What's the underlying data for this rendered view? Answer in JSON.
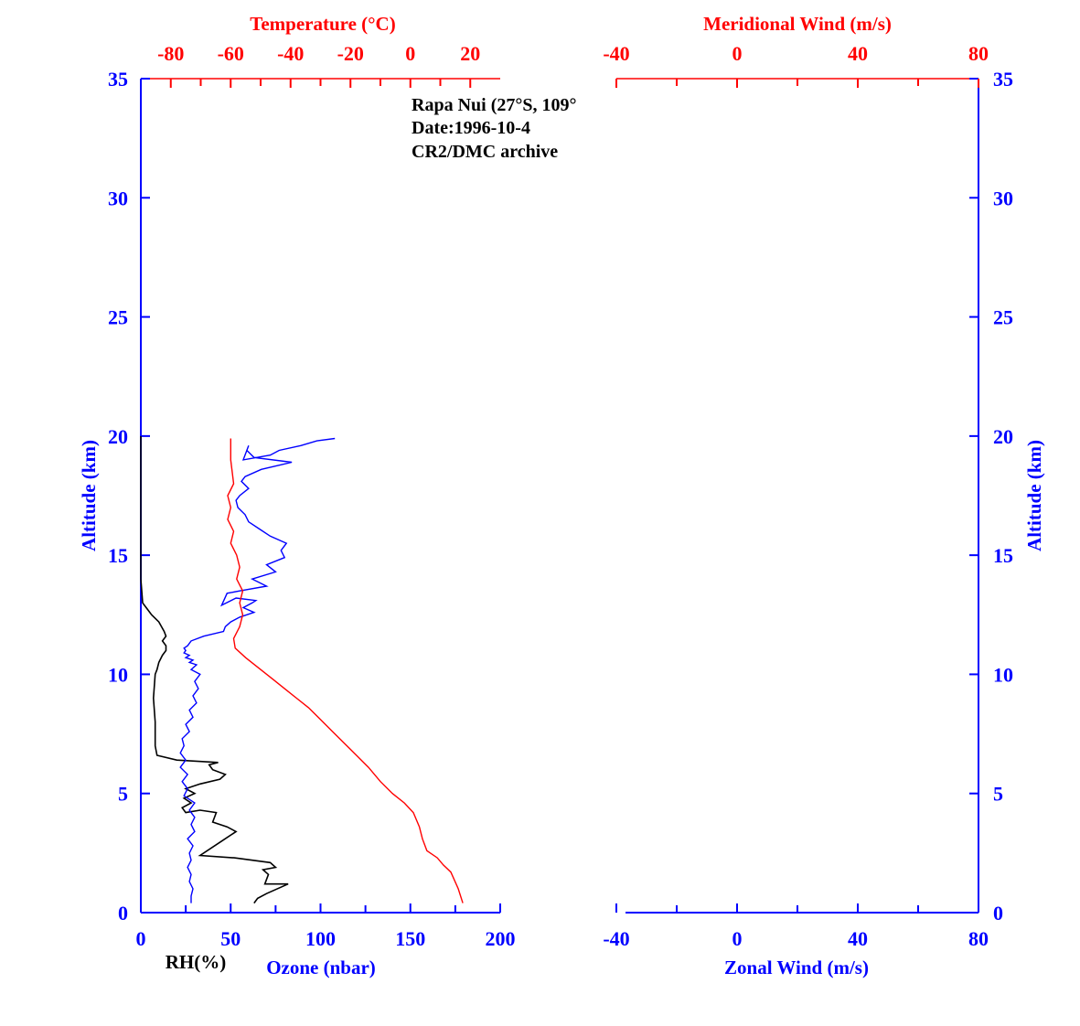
{
  "colors": {
    "blue": "#0000ff",
    "red": "#ff0000",
    "black": "#000000"
  },
  "chart_data": [
    {
      "type": "line",
      "panel": "left",
      "annotation": [
        "Rapa Nui (27°S, 109°",
        "Date:1996-10-4",
        "CR2/DMC archive"
      ],
      "y_axis": {
        "label": "Altitude (km)",
        "range": [
          0,
          35
        ],
        "ticks": [
          0,
          5,
          10,
          15,
          20,
          25,
          30,
          35
        ]
      },
      "x_axis_bottom": {
        "label": "Ozone (nbar)",
        "secondary_label": "RH(%)",
        "range": [
          0,
          200
        ],
        "ticks": [
          0,
          50,
          100,
          150,
          200
        ]
      },
      "x_axis_top": {
        "label": "Temperature (°C)",
        "range": [
          -90,
          30
        ],
        "ticks": [
          -80,
          -60,
          -40,
          -20,
          0,
          20
        ]
      },
      "series": [
        {
          "key": "ozone",
          "color": "#0000ff",
          "axis": "bottom",
          "x": [
            28,
            28,
            29,
            27,
            28,
            26,
            28,
            27,
            29,
            26,
            30,
            28,
            30,
            27,
            30,
            24,
            26,
            23,
            26,
            22,
            25,
            22,
            24,
            23,
            27,
            25,
            29,
            27,
            31,
            29,
            32,
            30,
            33,
            28,
            31,
            27,
            29,
            25,
            27,
            24,
            25,
            24,
            26,
            28,
            35,
            46,
            47,
            50,
            55,
            63,
            57,
            62,
            64,
            53,
            45,
            48,
            55,
            70,
            62,
            75,
            70,
            80,
            78,
            81,
            72,
            66,
            60,
            58,
            54,
            53,
            55,
            60,
            56,
            58,
            67,
            84,
            63,
            59,
            60,
            57,
            72,
            77,
            89,
            98,
            108
          ],
          "y": [
            0.4,
            0.7,
            1.0,
            1.3,
            1.6,
            1.9,
            2.2,
            2.5,
            2.8,
            3.1,
            3.4,
            3.7,
            4.0,
            4.3,
            4.6,
            4.9,
            5.2,
            5.5,
            5.8,
            6.1,
            6.4,
            6.7,
            7.0,
            7.3,
            7.6,
            7.9,
            8.2,
            8.5,
            8.8,
            9.1,
            9.4,
            9.7,
            10.0,
            10.2,
            10.4,
            10.5,
            10.6,
            10.7,
            10.8,
            10.9,
            11.0,
            11.1,
            11.2,
            11.4,
            11.6,
            11.8,
            12.0,
            12.2,
            12.4,
            12.6,
            12.8,
            13.0,
            13.1,
            13.2,
            12.9,
            13.4,
            13.5,
            13.7,
            14.0,
            14.3,
            14.6,
            14.9,
            15.2,
            15.5,
            15.8,
            16.1,
            16.4,
            16.7,
            17.0,
            17.3,
            17.5,
            17.8,
            18.1,
            18.3,
            18.6,
            18.9,
            19.1,
            19.4,
            19.6,
            19.0,
            19.2,
            19.4,
            19.6,
            19.8,
            19.9
          ]
        },
        {
          "key": "temperature",
          "color": "#ff0000",
          "axis": "top",
          "x": [
            17.5,
            16,
            13.5,
            11,
            9,
            5.5,
            4,
            3,
            1,
            -2,
            -6,
            -10,
            -14,
            -18,
            -22,
            -26,
            -30,
            -34,
            -38,
            -42,
            -46,
            -50,
            -55,
            -58.5,
            -59,
            -57,
            -56,
            -57,
            -56,
            -58,
            -57,
            -58,
            -60,
            -59,
            -61,
            -60,
            -61,
            -59,
            -60,
            -60
          ],
          "y": [
            0.4,
            1.0,
            1.7,
            2.0,
            2.3,
            2.6,
            3.1,
            3.6,
            4.2,
            4.6,
            5.0,
            5.5,
            6.1,
            6.6,
            7.1,
            7.6,
            8.1,
            8.6,
            9.0,
            9.4,
            9.8,
            10.2,
            10.7,
            11.1,
            11.5,
            12.0,
            12.5,
            13.0,
            13.5,
            14.0,
            14.5,
            15.0,
            15.5,
            16.0,
            16.5,
            17.0,
            17.5,
            18.0,
            19.0,
            19.9
          ]
        },
        {
          "key": "rh",
          "color": "#000000",
          "axis": "bottom",
          "x": [
            63,
            65,
            70,
            82,
            69,
            71,
            68,
            75,
            72,
            52,
            33,
            45,
            53,
            48,
            40,
            42,
            33,
            25,
            23,
            28,
            24,
            30,
            25,
            33,
            44,
            47,
            40,
            38,
            43,
            20,
            9,
            8,
            8,
            7,
            8,
            9,
            10,
            12,
            14,
            14,
            12,
            14,
            13,
            10,
            6,
            3,
            1,
            0,
            0,
            0
          ],
          "y": [
            0.4,
            0.6,
            0.8,
            1.2,
            1.2,
            1.6,
            1.8,
            1.9,
            2.1,
            2.3,
            2.4,
            3.0,
            3.4,
            3.6,
            3.8,
            4.2,
            4.3,
            4.2,
            4.4,
            4.6,
            4.8,
            5.0,
            5.2,
            5.4,
            5.6,
            5.8,
            6.0,
            6.2,
            6.3,
            6.4,
            6.6,
            7.0,
            8.0,
            9.0,
            10.0,
            10.2,
            10.5,
            10.8,
            11.0,
            11.2,
            11.4,
            11.6,
            11.8,
            12.2,
            12.5,
            12.8,
            13.0,
            14.0,
            17.0,
            20.0
          ]
        }
      ]
    },
    {
      "type": "line",
      "panel": "right",
      "y_axis": {
        "label": "Altitude (km)",
        "range": [
          0,
          35
        ],
        "ticks": [
          0,
          5,
          10,
          15,
          20,
          25,
          30,
          35
        ]
      },
      "x_axis_bottom": {
        "label": "Zonal Wind (m/s)",
        "range": [
          -40,
          80
        ],
        "ticks": [
          -40,
          0,
          40,
          80
        ]
      },
      "x_axis_top": {
        "label": "Meridional Wind (m/s)",
        "range": [
          -40,
          80
        ],
        "ticks": [
          -40,
          0,
          40,
          80
        ]
      },
      "series": []
    }
  ]
}
